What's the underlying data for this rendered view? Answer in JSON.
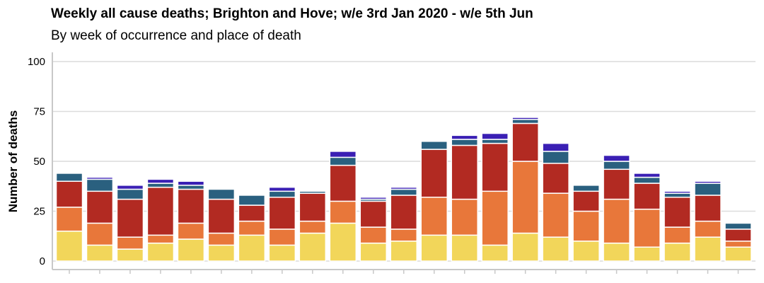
{
  "chart_data": {
    "type": "bar",
    "stacked": true,
    "title": "Weekly all cause deaths; Brighton and Hove; w/e 3rd Jan 2020 - w/e 5th Jun",
    "subtitle": "By week of occurrence and place of death",
    "ylabel": "Number of deaths",
    "xlabel": "",
    "ylim": [
      0,
      100
    ],
    "yticks": [
      0,
      25,
      50,
      75,
      100
    ],
    "grid": true,
    "series": [
      {
        "color": "#f2d65a",
        "values": [
          15,
          8,
          6,
          9,
          11,
          8,
          13,
          8,
          14,
          19,
          9,
          10,
          13,
          13,
          8,
          14,
          12,
          10,
          9,
          7,
          9,
          12,
          7
        ]
      },
      {
        "color": "#e8773a",
        "values": [
          12,
          11,
          6,
          4,
          8,
          6,
          7,
          8,
          6,
          11,
          8,
          6,
          19,
          18,
          27,
          36,
          22,
          15,
          22,
          19,
          8,
          8,
          3
        ]
      },
      {
        "color": "#b22a22",
        "values": [
          13,
          16,
          19,
          24,
          17,
          17,
          8,
          16,
          14,
          18,
          13,
          17,
          24,
          27,
          24,
          19,
          15,
          10,
          15,
          13,
          15,
          13,
          6
        ]
      },
      {
        "color": "#2a607f",
        "values": [
          4,
          6,
          5,
          2,
          2,
          5,
          5,
          3,
          1,
          4,
          1,
          3,
          4,
          3,
          2,
          2,
          6,
          3,
          4,
          3,
          2,
          6,
          3
        ]
      },
      {
        "color": "#3a1fb4",
        "values": [
          0,
          1,
          2,
          2,
          2,
          0,
          0,
          2,
          0,
          3,
          1,
          1,
          0,
          2,
          3,
          1,
          4,
          0,
          3,
          2,
          1,
          1,
          0
        ]
      }
    ]
  }
}
